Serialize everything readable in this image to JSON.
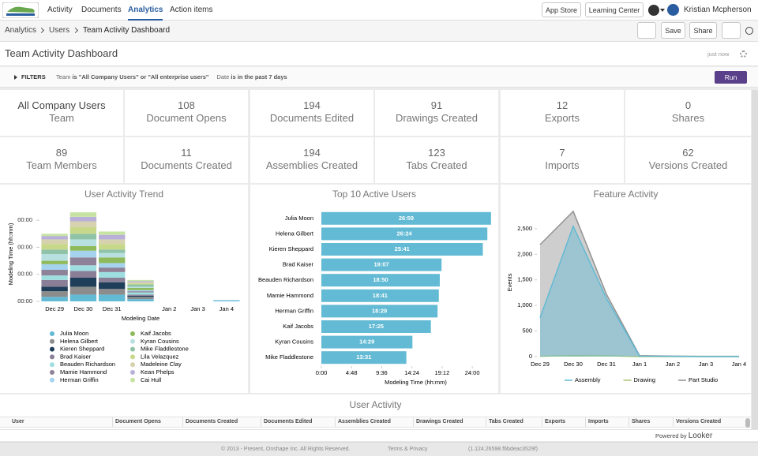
{
  "nav": {
    "items": [
      "Activity",
      "Documents",
      "Analytics",
      "Action items"
    ],
    "buttons": [
      "App Store",
      "Learning Center"
    ],
    "user": "Kristian Mcpherson"
  },
  "breadcrumb": [
    "Analytics",
    "Users",
    "Team Activity Dashboard"
  ],
  "toolbar": [
    "Save",
    "Share"
  ],
  "header": {
    "title": "Team Activity Dashboard",
    "updated": "just now"
  },
  "filters": {
    "label": "FILTERS",
    "items": [
      {
        "field": "Team",
        "condition": "is \"All Company Users\" or \"All enterprise users\""
      },
      {
        "field": "Date",
        "condition": "is in the past 7 days"
      }
    ],
    "run": "Run"
  },
  "tiles": [
    {
      "value": "All Company Users",
      "label": "Team"
    },
    {
      "value": 108,
      "label": "Document Opens"
    },
    {
      "value": 194,
      "label": "Documents Edited"
    },
    {
      "value": 91,
      "label": "Drawings Created"
    },
    {
      "value": 12,
      "label": "Exports"
    },
    {
      "value": 0,
      "label": "Shares"
    },
    {
      "value": 89,
      "label": "Team Members"
    },
    {
      "value": 11,
      "label": "Documents Created"
    },
    {
      "value": 194,
      "label": "Assemblies Created"
    },
    {
      "value": 123,
      "label": "Tabs Created"
    },
    {
      "value": 7,
      "label": "Imports"
    },
    {
      "value": 62,
      "label": "Versions Created"
    }
  ],
  "chart_data": [
    {
      "type": "stacked-bar",
      "title": "User Activity Trend",
      "xlabel": "Modeling Date",
      "ylabel": "Modeling Time (hh:mm)",
      "categories": [
        "Dec 29",
        "Dec 30",
        "Dec 31",
        null,
        "Jan 2",
        "Jan 3",
        "Jan 4"
      ],
      "ylim": [
        0,
        84
      ],
      "yticks": [
        {
          "value": 0,
          "label": "00:00"
        },
        {
          "value": 24,
          "label": "00:00"
        },
        {
          "value": 48,
          "label": "00:00"
        },
        {
          "value": 72,
          "label": "00:00"
        }
      ],
      "legend": "bottom",
      "series": [
        {
          "name": "Julia Moon",
          "color": "#62bad4",
          "values": [
            4,
            6,
            6,
            2,
            0,
            0,
            1
          ]
        },
        {
          "name": "Helena Gilbert",
          "color": "#8c8c8c",
          "values": [
            5,
            7,
            5,
            2,
            0,
            0,
            0
          ]
        },
        {
          "name": "Kieren Sheppard",
          "color": "#1f3e5a",
          "values": [
            4,
            8,
            6,
            1,
            0,
            0,
            0
          ]
        },
        {
          "name": "Brad Kaiser",
          "color": "#8a7f96",
          "values": [
            6,
            6,
            4,
            1,
            0,
            0,
            0
          ]
        },
        {
          "name": "Beauden Richardson",
          "color": "#9fdee0",
          "values": [
            4,
            5,
            5,
            2,
            0,
            0,
            0
          ]
        },
        {
          "name": "Mamie Hammond",
          "color": "#8e8298",
          "values": [
            5,
            7,
            4,
            1,
            0,
            0,
            0
          ]
        },
        {
          "name": "Herman Griffin",
          "color": "#a5d3ee",
          "values": [
            5,
            6,
            4,
            1,
            0,
            0,
            0
          ]
        },
        {
          "name": "Kaif Jacobs",
          "color": "#8fba5b",
          "values": [
            3,
            4,
            5,
            2,
            0,
            0,
            0
          ]
        },
        {
          "name": "Kyran Cousins",
          "color": "#b8e0e0",
          "values": [
            6,
            6,
            4,
            1,
            0,
            0,
            0
          ]
        },
        {
          "name": "Mike Fladdlestone",
          "color": "#8fc2a6",
          "values": [
            4,
            5,
            3,
            2,
            0,
            0,
            0
          ]
        },
        {
          "name": "Lila Velazquez",
          "color": "#c8d88a",
          "values": [
            5,
            6,
            5,
            1,
            0,
            0,
            0
          ]
        },
        {
          "name": "Madeleine Clay",
          "color": "#d6d1ae",
          "values": [
            4,
            5,
            4,
            1,
            0,
            0,
            0
          ]
        },
        {
          "name": "Kean Phelps",
          "color": "#b8b0d8",
          "values": [
            3,
            4,
            4,
            1,
            0,
            0,
            0
          ]
        },
        {
          "name": "Cai Hull",
          "color": "#c7e3a4",
          "values": [
            2,
            4,
            3,
            1,
            0,
            0,
            0
          ]
        }
      ]
    },
    {
      "type": "hbar",
      "title": "Top 10 Active Users",
      "xlabel": "Modeling Time (hh:mm)",
      "color": "#62bad4",
      "categories": [
        "Julia Moon",
        "Helena Gilbert",
        "Kieren Sheppard",
        "Brad Kaiser",
        "Beauden Richardson",
        "Mamie Hammond",
        "Herman Griffin",
        "Kaif Jacobs",
        "Kyran Cousins",
        "Mike Fladdlestone"
      ],
      "values": [
        26.983,
        26.4,
        25.683,
        19.117,
        18.833,
        18.683,
        18.483,
        17.417,
        14.483,
        13.517
      ],
      "value_labels": [
        "26:59",
        "26:24",
        "25:41",
        "19:07",
        "18:50",
        "18:41",
        "18:29",
        "17:25",
        "14:29",
        "13:31"
      ],
      "xlim": [
        0,
        27
      ],
      "xticks": [
        {
          "value": 0,
          "label": "0:00"
        },
        {
          "value": 4.8,
          "label": "4:48"
        },
        {
          "value": 9.6,
          "label": "9:36"
        },
        {
          "value": 14.4,
          "label": "14:24"
        },
        {
          "value": 19.2,
          "label": "19:12"
        },
        {
          "value": 24,
          "label": "24:00"
        }
      ]
    },
    {
      "type": "area",
      "title": "Feature Activity",
      "ylabel": "Events",
      "categories": [
        "Dec 29",
        "Dec 30",
        "Dec 31",
        "Jan 1",
        "Jan 2",
        "Jan 3",
        "Jan 4"
      ],
      "ylim": [
        0,
        2900
      ],
      "yticks": [
        0,
        500,
        {
          "value": 1000,
          "label": "1,000"
        },
        {
          "value": 1500,
          "label": "1,500"
        },
        {
          "value": 2000,
          "label": "2,000"
        },
        {
          "value": 2500,
          "label": "2,500"
        }
      ],
      "legend": "bottom",
      "series": [
        {
          "name": "Assembly",
          "color": "#62bad4",
          "values": [
            760,
            2550,
            1140,
            10,
            5,
            0,
            0
          ]
        },
        {
          "name": "Drawing",
          "color": "#a9c574",
          "values": [
            5,
            20,
            15,
            0,
            0,
            0,
            0
          ]
        },
        {
          "name": "Part Studio",
          "color": "#929292",
          "values": [
            2190,
            2840,
            1220,
            20,
            10,
            5,
            5
          ]
        }
      ]
    }
  ],
  "table": {
    "title": "User Activity",
    "columns": [
      "User",
      "Document Opens",
      "Documents Created",
      "Documents Edited",
      "Assemblies Created",
      "Drawings Created",
      "Tabs Created",
      "Exports",
      "Imports",
      "Shares",
      "Versions Created"
    ]
  },
  "powered": {
    "text": "Powered by",
    "brand": "Looker"
  },
  "footer": {
    "copyright": "© 2013 - Present, Onshape Inc. All Rights Reserved.",
    "link": "Terms & Privacy",
    "version": "(1.124.26598.f6bdeac3529f)"
  }
}
